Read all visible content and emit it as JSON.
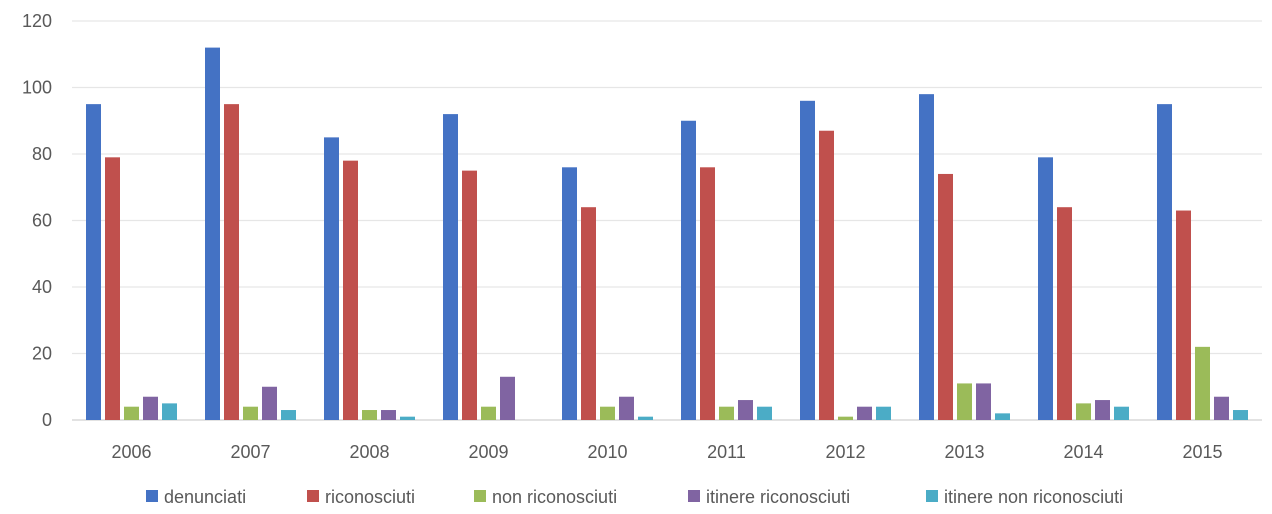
{
  "chart_data": {
    "type": "bar",
    "title": "",
    "xlabel": "",
    "ylabel": "",
    "ylim": [
      0,
      120
    ],
    "yticks": [
      0,
      20,
      40,
      60,
      80,
      100,
      120
    ],
    "grid": true,
    "legend": "bottom",
    "categories": [
      "2006",
      "2007",
      "2008",
      "2009",
      "2010",
      "2011",
      "2012",
      "2013",
      "2014",
      "2015"
    ],
    "series": [
      {
        "name": "denunciati",
        "color": "#4472C4",
        "values": [
          95,
          112,
          85,
          92,
          76,
          90,
          96,
          98,
          79,
          95
        ]
      },
      {
        "name": "riconosciuti",
        "color": "#C0504D",
        "values": [
          79,
          95,
          78,
          75,
          64,
          76,
          87,
          74,
          64,
          63
        ]
      },
      {
        "name": "non riconosciuti",
        "color": "#9BBB59",
        "values": [
          4,
          4,
          3,
          4,
          4,
          4,
          1,
          11,
          5,
          22
        ]
      },
      {
        "name": "itinere riconosciuti",
        "color": "#8064A2",
        "values": [
          7,
          10,
          3,
          13,
          7,
          6,
          4,
          11,
          6,
          7
        ]
      },
      {
        "name": "itinere non riconosciuti",
        "color": "#4BACC6",
        "values": [
          5,
          3,
          1,
          0,
          1,
          4,
          4,
          2,
          4,
          3
        ]
      }
    ]
  }
}
